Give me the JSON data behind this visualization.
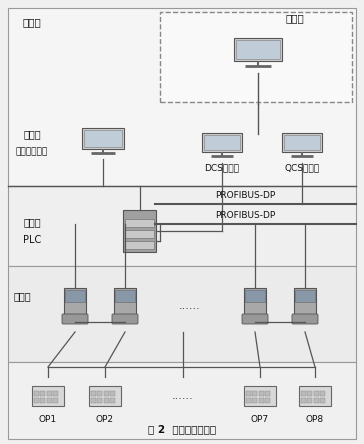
{
  "title": "图 2  控制系统结构图",
  "bg_color": "#f0f0f0",
  "ethernet_label": "以太网",
  "mgmt_label": "管理级",
  "lv3_label": "第三级",
  "lv3_sub": "传动部上位机",
  "lv2_label": "第二级",
  "lv2_sub": "PLC",
  "lv1_label": "第一级",
  "profibus1": "PROFIBUS-DP",
  "profibus2": "PROFIBUS-DP",
  "dcs_label": "DCS上位机",
  "qcs_label": "QCS上位机",
  "op_labels": [
    "OP1",
    "OP2",
    "......",
    "OP7",
    "OP8"
  ],
  "dots_label": "......",
  "line_color": "#555555",
  "border_color": "#999999",
  "box_fill": "#f0f0f0",
  "mgmt_fill": "#f8f8f8",
  "device_gray": "#b8b8b8",
  "device_dark": "#888888"
}
